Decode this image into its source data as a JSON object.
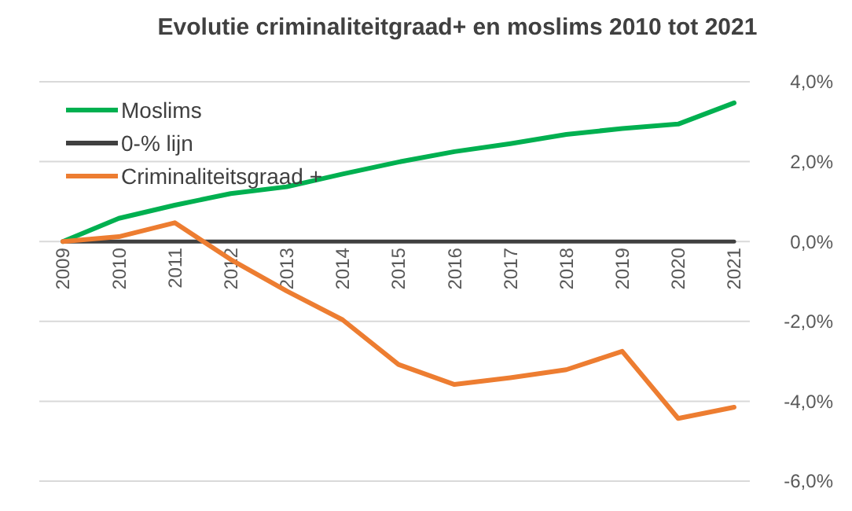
{
  "chart_data": {
    "type": "line",
    "title": "Evolutie criminaliteitgraad+  en moslims 2010 tot 2021",
    "categories": [
      "2009",
      "2010",
      "2011",
      "2012",
      "2013",
      "2014",
      "2015",
      "2016",
      "2017",
      "2018",
      "2019",
      "2020",
      "2021"
    ],
    "series": [
      {
        "name": "Moslims",
        "color": "#00b050",
        "values": [
          0,
          0.58,
          0.91,
          1.2,
          1.37,
          1.69,
          1.99,
          2.25,
          2.45,
          2.68,
          2.83,
          2.94,
          3.47
        ]
      },
      {
        "name": "0-% lijn",
        "color": "#404040",
        "values": [
          0,
          0,
          0,
          0,
          0,
          0,
          0,
          0,
          0,
          0,
          0,
          0,
          0
        ]
      },
      {
        "name": "Criminaliteitsgraad +",
        "color": "#ed7d31",
        "values": [
          0,
          0.12,
          0.47,
          -0.45,
          -1.24,
          -1.96,
          -3.08,
          -3.58,
          -3.41,
          -3.21,
          -2.75,
          -4.43,
          -4.15
        ]
      }
    ],
    "ylim": [
      -6,
      4
    ],
    "yticks": [
      {
        "value": -6,
        "label": "-6,0%"
      },
      {
        "value": -4,
        "label": "-4,0%"
      },
      {
        "value": -2,
        "label": "-2,0%"
      },
      {
        "value": 0,
        "label": "0,0%"
      },
      {
        "value": 2,
        "label": "2,0%"
      },
      {
        "value": 4,
        "label": "4,0%"
      }
    ],
    "grid": "y",
    "legend": "top left",
    "marker": "none",
    "line_style": "solid"
  }
}
